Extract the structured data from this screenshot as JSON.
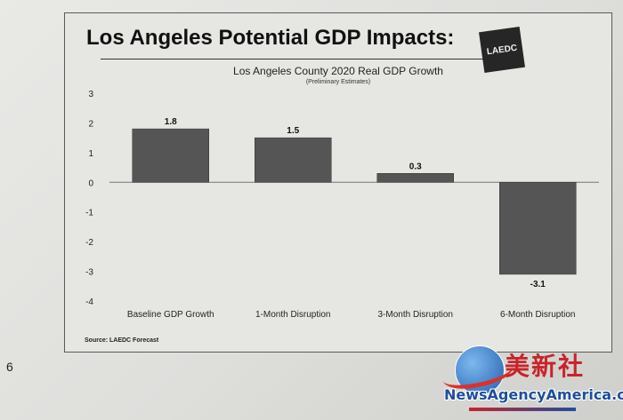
{
  "slide": {
    "title": "Los Angeles Potential GDP Impacts:",
    "logo_text": "LAEDC",
    "source": "Source: LAEDC Forecast",
    "page_number": "6"
  },
  "watermark": {
    "chinese_text": "美新社",
    "url": "NewsAgencyAmerica.com"
  },
  "chart_data": {
    "type": "bar",
    "title": "Los Angeles County 2020 Real GDP Growth",
    "subtitle": "(Preliminary Estimates)",
    "categories": [
      "Baseline GDP Growth",
      "1-Month Disruption",
      "3-Month Disruption",
      "6-Month Disruption"
    ],
    "values": [
      1.8,
      1.5,
      0.3,
      -3.1
    ],
    "value_labels": [
      "1.8",
      "1.5",
      "0.3",
      "-3.1"
    ],
    "ylim": [
      -4,
      3
    ],
    "yticks": [
      3,
      2,
      1,
      0,
      -1,
      -2,
      -3,
      -4
    ],
    "xlabel": "",
    "ylabel": "",
    "grid": false,
    "legend": "none",
    "bar_color": "#555555"
  }
}
